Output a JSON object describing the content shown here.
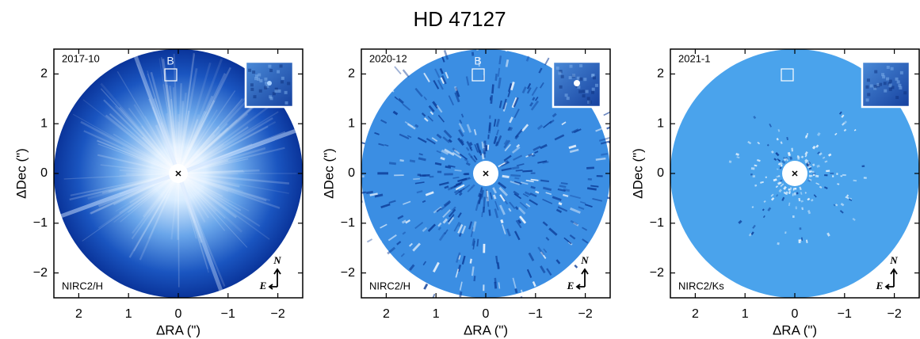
{
  "title": "HD 47127",
  "chart_data": [
    {
      "type": "image",
      "epoch": "2017-10",
      "instrument": "NIRC2/H",
      "companion_label": "B",
      "compass": {
        "north": "N",
        "east": "E"
      },
      "xlabel": "ΔRA (\")",
      "ylabel": "ΔDec (\")",
      "xlim": [
        2.5,
        -2.5
      ],
      "ylim": [
        -2.5,
        2.5
      ],
      "xticks": [
        2,
        1,
        0,
        {
          "value": -1,
          "label": "−1"
        },
        {
          "value": -2,
          "label": "−2"
        }
      ],
      "yticks": [
        {
          "value": -2,
          "label": "−2"
        },
        {
          "value": -1,
          "label": "−1"
        },
        0,
        1,
        2
      ]
    },
    {
      "type": "image",
      "epoch": "2020-12",
      "instrument": "NIRC2/H",
      "companion_label": "B",
      "compass": {
        "north": "N",
        "east": "E"
      },
      "xlabel": "ΔRA (\")",
      "ylabel": "ΔDec (\")",
      "xlim": [
        2.5,
        -2.5
      ],
      "ylim": [
        -2.5,
        2.5
      ],
      "xticks": [
        2,
        1,
        0,
        {
          "value": -1,
          "label": "−1"
        },
        {
          "value": -2,
          "label": "−2"
        }
      ],
      "yticks": [
        {
          "value": -2,
          "label": "−2"
        },
        {
          "value": -1,
          "label": "−1"
        },
        0,
        1,
        2
      ]
    },
    {
      "type": "image",
      "epoch": "2021-1",
      "instrument": "NIRC2/Ks",
      "compass": {
        "north": "N",
        "east": "E"
      },
      "xlabel": "ΔRA (\")",
      "ylabel": "ΔDec (\")",
      "xlim": [
        2.5,
        -2.5
      ],
      "ylim": [
        -2.5,
        2.5
      ],
      "xticks": [
        2,
        1,
        0,
        {
          "value": -1,
          "label": "−1"
        },
        {
          "value": -2,
          "label": "−2"
        }
      ],
      "yticks": [
        {
          "value": -2,
          "label": "−2"
        },
        {
          "value": -1,
          "label": "−1"
        },
        0,
        1,
        2
      ]
    }
  ]
}
